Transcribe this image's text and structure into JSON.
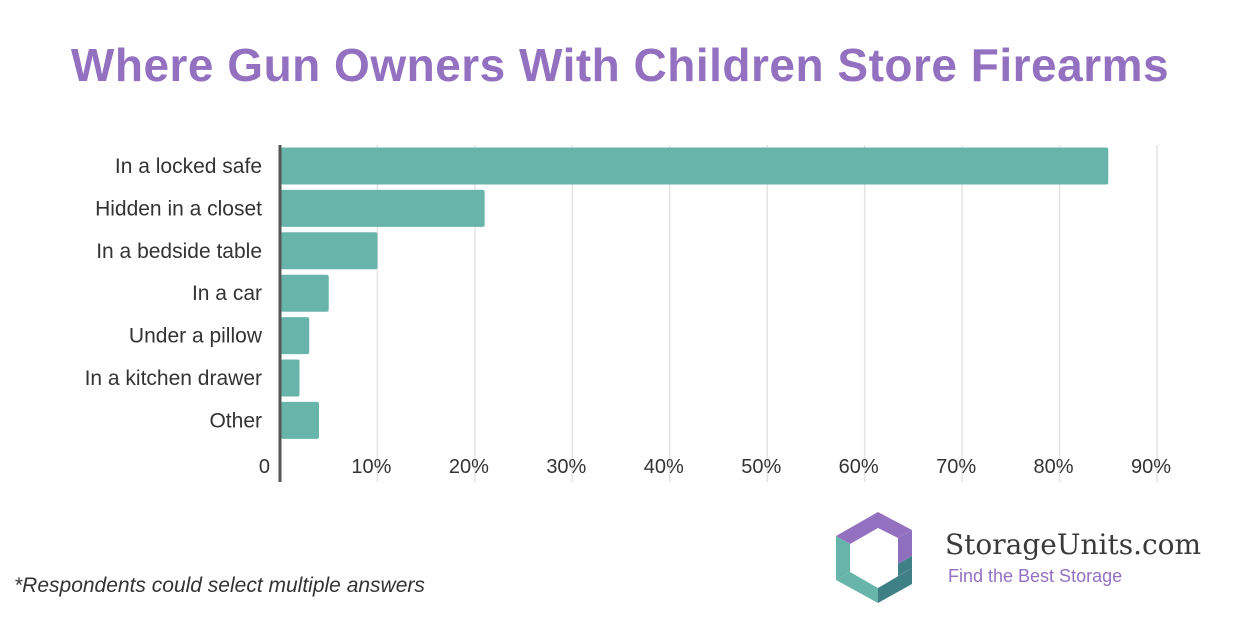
{
  "chart_data": {
    "type": "bar",
    "orientation": "horizontal",
    "title": "Where Gun Owners With Children Store Firearms",
    "categories": [
      "In a locked safe",
      "Hidden in a closet",
      "In a bedside table",
      "In a car",
      "Under a pillow",
      "In a kitchen drawer",
      "Other"
    ],
    "values": [
      85,
      21,
      10,
      5,
      3,
      2,
      4
    ],
    "xlim": [
      0,
      90
    ],
    "xticks": [
      0,
      10,
      20,
      30,
      40,
      50,
      60,
      70,
      80,
      90
    ],
    "xtick_labels": [
      "0",
      "10%",
      "20%",
      "30%",
      "40%",
      "50%",
      "60%",
      "70%",
      "80%",
      "90%"
    ],
    "grid": true,
    "bar_color": "#67b5aa"
  },
  "footnote": "*Respondents could select multiple answers",
  "brand": {
    "name": "StorageUnits.com",
    "tagline": "Find the Best Storage"
  },
  "colors": {
    "title": "#9370c0",
    "bar": "#67b5aa",
    "grid": "#e4e4e4",
    "axis": "#555555",
    "label": "#333333"
  }
}
